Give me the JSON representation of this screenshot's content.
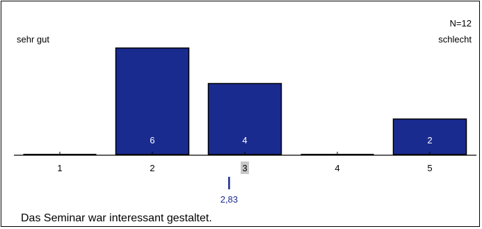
{
  "chart_data": {
    "type": "bar",
    "categories": [
      "1",
      "2",
      "3",
      "4",
      "5"
    ],
    "values": [
      0,
      6,
      4,
      0,
      2
    ],
    "ylim": [
      0,
      6
    ],
    "n_label": "N=12",
    "left_anchor": "sehr gut",
    "right_anchor": "schlecht",
    "question": "Das Seminar war interessant gestaltet.",
    "mean": 2.83,
    "mean_label": "2,83",
    "median_category": "3",
    "grid": false,
    "legend": "none",
    "colors": {
      "bar": "#1a2b8f",
      "bar_border": "#000000",
      "mean": "#1a2b8f",
      "median_highlight": "#c8c8c8"
    }
  }
}
